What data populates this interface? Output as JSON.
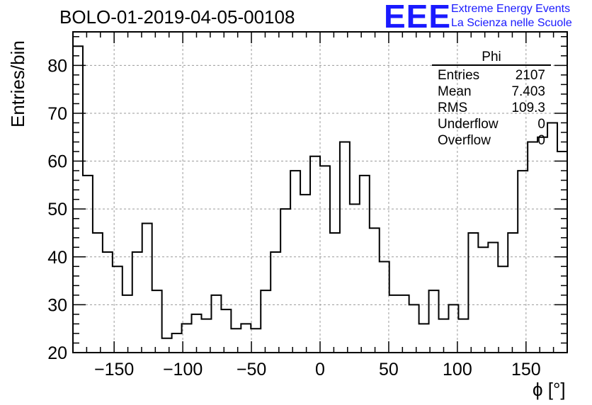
{
  "title": "BOLO-01-2019-04-05-00108",
  "logo": {
    "mark": "EEE",
    "line1": "Extreme Energy Events",
    "line2": "La Scienza nelle Scuole",
    "color": "#1a1aff"
  },
  "stats": {
    "name": "Phi",
    "rows": [
      {
        "label": "Entries",
        "value": "2107"
      },
      {
        "label": "Mean",
        "value": "7.403"
      },
      {
        "label": "RMS",
        "value": "109.3"
      },
      {
        "label": "Underflow",
        "value": "0"
      },
      {
        "label": "Overflow",
        "value": "0"
      }
    ]
  },
  "chart_data": {
    "type": "bar",
    "style": "step-histogram",
    "title": "BOLO-01-2019-04-05-00108",
    "xlabel": "ϕ [°]",
    "ylabel": "Entries/bin",
    "xlim": [
      -180,
      180
    ],
    "ylim": [
      20,
      87
    ],
    "bin_width": 7.2,
    "xticks": [
      -150,
      -100,
      -50,
      0,
      50,
      100,
      150
    ],
    "yticks": [
      20,
      30,
      40,
      50,
      60,
      70,
      80
    ],
    "grid": true,
    "values": [
      84,
      57,
      45,
      41,
      38,
      32,
      41,
      47,
      33,
      23,
      24,
      26,
      28,
      27,
      32,
      29,
      25,
      26,
      25,
      33,
      41,
      50,
      58,
      53,
      61,
      59,
      45,
      64,
      51,
      57,
      46,
      39,
      32,
      32,
      30,
      26,
      33,
      27,
      30,
      27,
      45,
      42,
      43,
      38,
      45,
      58,
      64,
      65,
      68,
      62
    ]
  }
}
